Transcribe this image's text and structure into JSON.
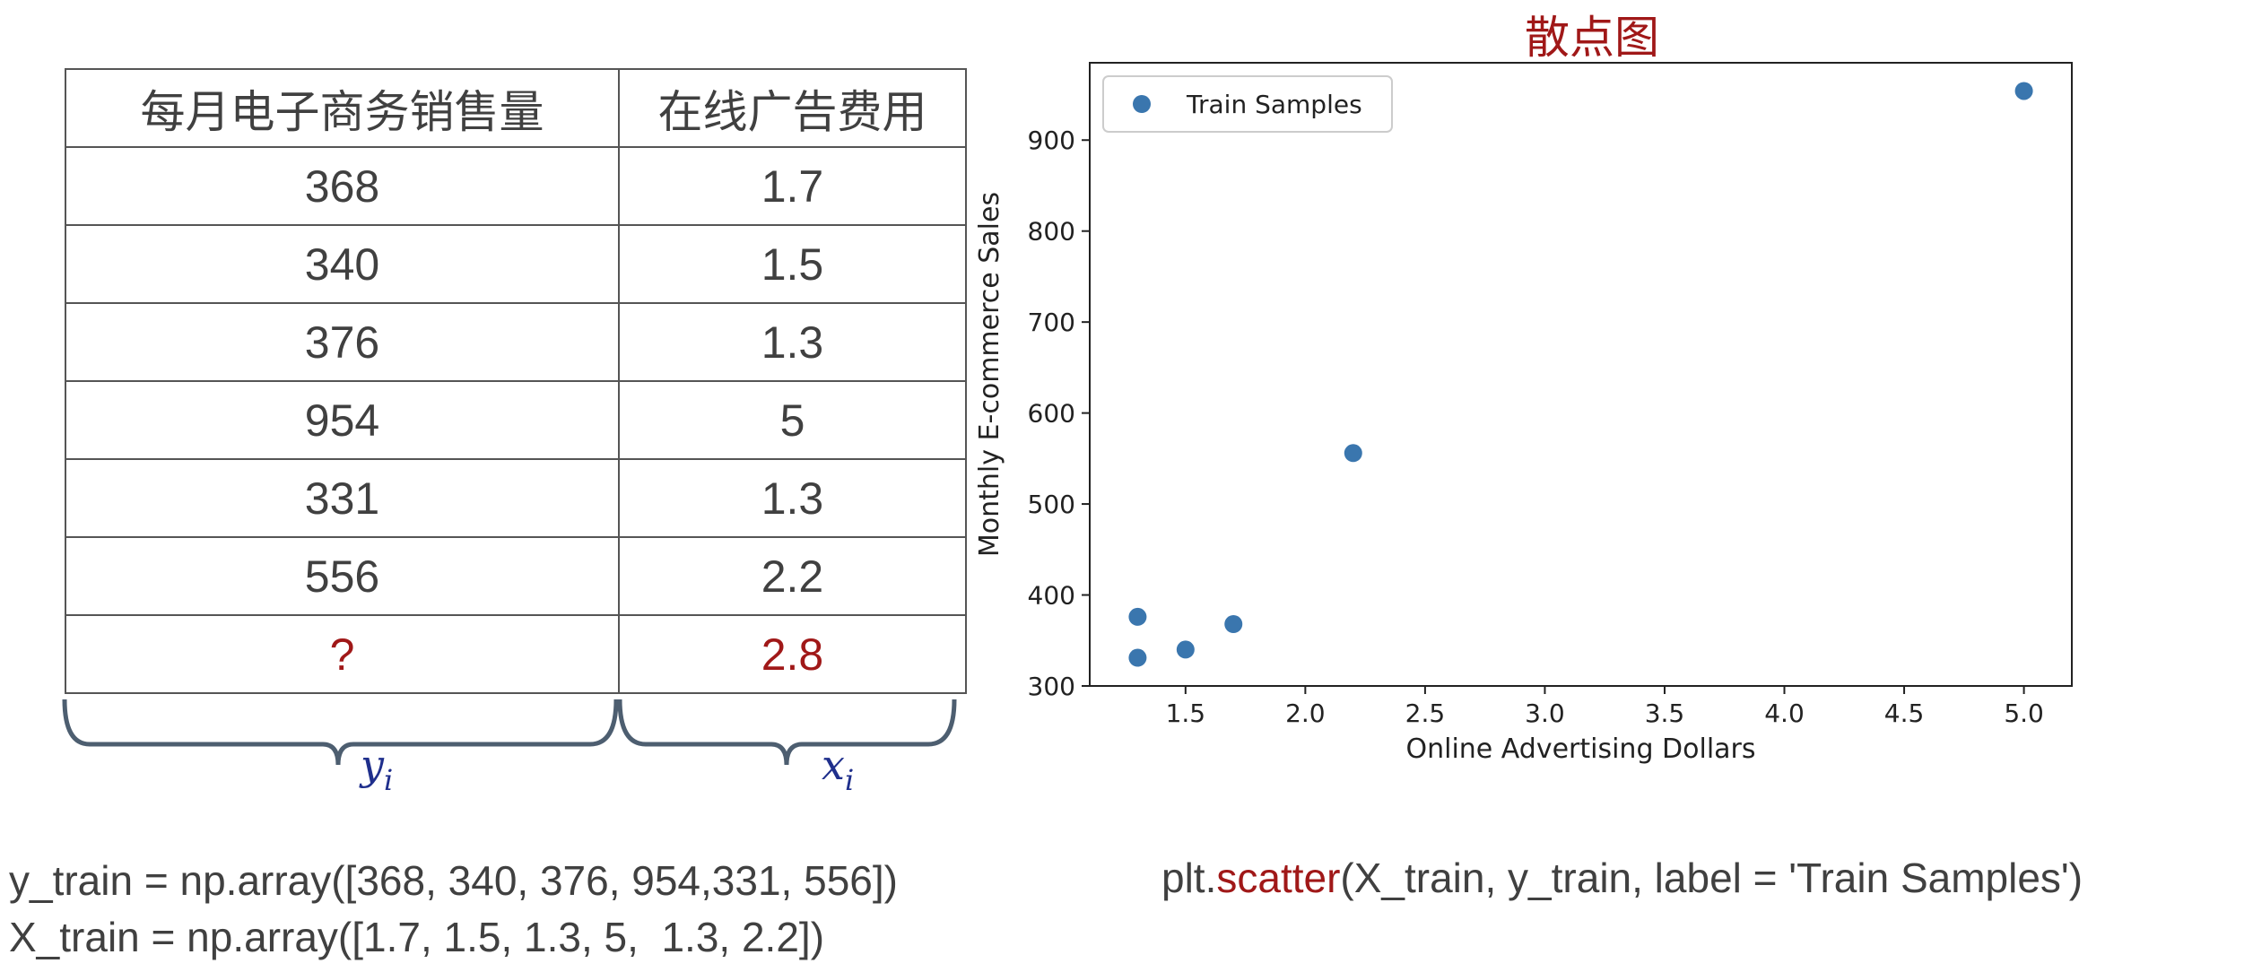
{
  "table": {
    "headers": [
      "每月电子商务销售量",
      "在线广告费用"
    ],
    "rows": [
      [
        "368",
        "1.7"
      ],
      [
        "340",
        "1.5"
      ],
      [
        "376",
        "1.3"
      ],
      [
        "954",
        "5"
      ],
      [
        "331",
        "1.3"
      ],
      [
        "556",
        "2.2"
      ],
      [
        "?",
        "2.8"
      ]
    ],
    "query_color": "#a01818"
  },
  "labels": {
    "y_var": "y",
    "y_sub": "i",
    "x_var": "x",
    "x_sub": "i"
  },
  "code": {
    "y_train": "y_train = np.array([368, 340, 376, 954,331, 556])",
    "x_train": "X_train = np.array([1.7, 1.5, 1.3, 5,  1.3, 2.2])",
    "scatter_prefix": "plt.",
    "scatter_fn": "scatter",
    "scatter_suffix": "(X_train, y_train, label = 'Train Samples')"
  },
  "chart_data": {
    "type": "scatter",
    "title": "散点图",
    "xlabel": "Online Advertising Dollars",
    "ylabel": "Monthly E-commerce Sales",
    "xlim": [
      1.1,
      5.2
    ],
    "ylim": [
      300,
      985
    ],
    "xticks": [
      1.5,
      2.0,
      2.5,
      3.0,
      3.5,
      4.0,
      4.5,
      5.0
    ],
    "xtick_labels": [
      "1.5",
      "2.0",
      "2.5",
      "3.0",
      "3.5",
      "4.0",
      "4.5",
      "5.0"
    ],
    "yticks": [
      300,
      400,
      500,
      600,
      700,
      800,
      900
    ],
    "ytick_labels": [
      "300",
      "400",
      "500",
      "600",
      "700",
      "800",
      "900"
    ],
    "grid": false,
    "legend_position": "top-left",
    "series": [
      {
        "name": "Train Samples",
        "color": "#3a76ae",
        "points": [
          {
            "x": 1.7,
            "y": 368
          },
          {
            "x": 1.5,
            "y": 340
          },
          {
            "x": 1.3,
            "y": 376
          },
          {
            "x": 5.0,
            "y": 954
          },
          {
            "x": 1.3,
            "y": 331
          },
          {
            "x": 2.2,
            "y": 556
          }
        ]
      }
    ]
  }
}
